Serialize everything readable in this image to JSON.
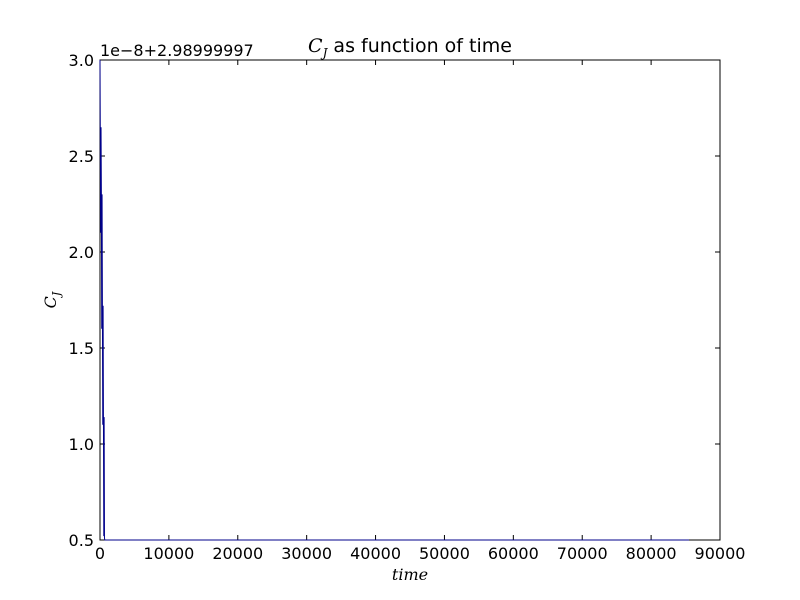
{
  "chart_data": {
    "type": "line",
    "title": {
      "math": "C",
      "math_sub": "J",
      "text": " as function of time"
    },
    "xlabel": "time",
    "ylabel": {
      "math": "C",
      "math_sub": "J"
    },
    "offset_text": "1e−8+2.98999997",
    "xlim": [
      0,
      90000
    ],
    "ylim": [
      0.5,
      3.0
    ],
    "x_ticks": [
      0,
      10000,
      20000,
      30000,
      40000,
      50000,
      60000,
      70000,
      80000,
      90000
    ],
    "x_tick_labels": [
      "0",
      "10000",
      "20000",
      "30000",
      "40000",
      "50000",
      "60000",
      "70000",
      "80000",
      "90000"
    ],
    "y_ticks": [
      0.5,
      1.0,
      1.5,
      2.0,
      2.5,
      3.0
    ],
    "y_tick_labels": [
      "0.5",
      "1.0",
      "1.5",
      "2.0",
      "2.5",
      "3.0"
    ],
    "grid": false,
    "series": [
      {
        "color": "#00008b",
        "x": [
          0,
          100,
          150,
          200,
          250,
          300,
          350,
          400,
          450,
          500,
          550,
          600,
          650,
          700,
          750,
          800,
          2000,
          10000,
          30000,
          50000,
          70000,
          85500
        ],
        "y": [
          3.0,
          2.1,
          2.65,
          2.3,
          1.6,
          2.3,
          1.7,
          1.1,
          1.72,
          1.14,
          0.52,
          1.14,
          0.51,
          0.5,
          0.5,
          0.5,
          0.5,
          0.5,
          0.5,
          0.5,
          0.5,
          0.5
        ]
      }
    ]
  }
}
